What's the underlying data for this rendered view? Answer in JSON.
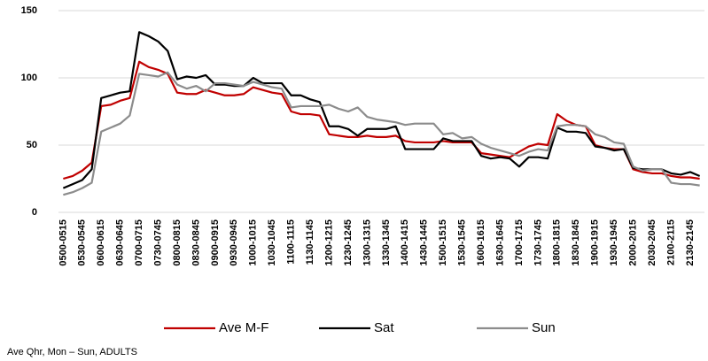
{
  "chart_data": {
    "type": "line",
    "categories": [
      "0500-0515",
      null,
      "0530-0545",
      null,
      "0600-0615",
      null,
      "0630-0645",
      null,
      "0700-0715",
      null,
      "0730-0745",
      null,
      "0800-0815",
      null,
      "0830-0845",
      null,
      "0900-0915",
      null,
      "0930-0945",
      null,
      "1000-1015",
      null,
      "1030-1045",
      null,
      "1100-1115",
      null,
      "1130-1145",
      null,
      "1200-1215",
      null,
      "1230-1245",
      null,
      "1300-1315",
      null,
      "1330-1345",
      null,
      "1400-1415",
      null,
      "1430-1445",
      null,
      "1500-1515",
      null,
      "1530-1545",
      null,
      "1600-1615",
      null,
      "1630-1645",
      null,
      "1700-1715",
      null,
      "1730-1745",
      null,
      "1800-1815",
      null,
      "1830-1845",
      null,
      "1900-1915",
      null,
      "1930-1945",
      null,
      "2000-2015",
      null,
      "2030-2045",
      null,
      "2100-2115",
      null,
      "2130-2145",
      null
    ],
    "series": [
      {
        "name": "Ave M-F",
        "color": "#c00000",
        "values": [
          25,
          27,
          31,
          37,
          79,
          80,
          83,
          85,
          112,
          108,
          106,
          103,
          89,
          88,
          88,
          91,
          89,
          87,
          87,
          88,
          93,
          91,
          89,
          88,
          75,
          73,
          73,
          72,
          58,
          57,
          56,
          56,
          57,
          56,
          56,
          57,
          53,
          52,
          52,
          52,
          53,
          52,
          52,
          52,
          44,
          43,
          42,
          41,
          45,
          49,
          51,
          50,
          73,
          68,
          65,
          64,
          50,
          48,
          47,
          47,
          32,
          30,
          29,
          29,
          27,
          26,
          26,
          25
        ]
      },
      {
        "name": "Sat",
        "color": "#000000",
        "values": [
          18,
          21,
          24,
          32,
          85,
          87,
          89,
          90,
          134,
          131,
          127,
          120,
          99,
          101,
          100,
          102,
          95,
          95,
          94,
          94,
          100,
          96,
          96,
          96,
          87,
          87,
          84,
          82,
          64,
          64,
          62,
          57,
          62,
          62,
          62,
          64,
          47,
          47,
          47,
          47,
          55,
          53,
          53,
          53,
          42,
          40,
          41,
          40,
          34,
          41,
          41,
          40,
          63,
          60,
          60,
          59,
          49,
          48,
          46,
          47,
          33,
          32,
          32,
          32,
          29,
          28,
          30,
          27
        ]
      },
      {
        "name": "Sun",
        "color": "#8c8c8c",
        "values": [
          13,
          15,
          18,
          22,
          60,
          63,
          66,
          72,
          103,
          102,
          101,
          104,
          95,
          92,
          94,
          90,
          96,
          96,
          95,
          94,
          97,
          95,
          93,
          92,
          78,
          79,
          79,
          79,
          80,
          77,
          75,
          78,
          71,
          69,
          68,
          67,
          65,
          66,
          66,
          66,
          58,
          59,
          55,
          56,
          51,
          48,
          46,
          44,
          42,
          45,
          47,
          46,
          64,
          65,
          65,
          64,
          58,
          56,
          52,
          51,
          34,
          31,
          32,
          32,
          22,
          21,
          21,
          20
        ]
      }
    ],
    "ylim": [
      0,
      150
    ],
    "yticks": [
      0,
      50,
      100,
      150
    ],
    "grid": true,
    "legend": "bottom",
    "footnote": "Ave Qhr, Mon – Sun, ADULTS"
  }
}
